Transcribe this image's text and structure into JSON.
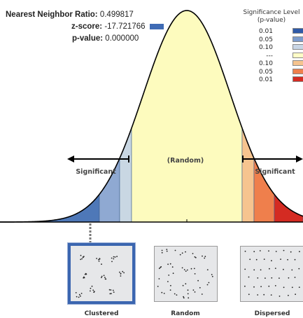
{
  "stats": {
    "nn_ratio_label": "Nearest Neighbor Ratio:",
    "nn_ratio_value": "0.499817",
    "zscore_label": "z-score:",
    "zscore_value": "-17.721766",
    "pvalue_label": "p-value:",
    "pvalue_value": "0.000000",
    "zscore_swatch_color": "#3f6bb5"
  },
  "legend": {
    "title_line1": "Significance Level",
    "title_line2": "(p-value)",
    "rows": [
      {
        "label": "0.01",
        "color": "#2f5aa8"
      },
      {
        "label": "0.05",
        "color": "#7c9ccd"
      },
      {
        "label": "0.10",
        "color": "#c9d6e6"
      },
      {
        "label": "---",
        "color": "#fffdc7"
      },
      {
        "label": "0.10",
        "color": "#f6c48f"
      },
      {
        "label": "0.05",
        "color": "#ef7f4c"
      },
      {
        "label": "0.01",
        "color": "#d42b22"
      }
    ]
  },
  "curve": {
    "center_label": "(Random)",
    "left_label": "Significant",
    "right_label": "Significant",
    "colors": {
      "blue_dark": "#4e78b8",
      "blue_mid": "#8fa9d2",
      "blue_light": "#c9d7e3",
      "yellow": "#fdfbbe",
      "orange_light": "#f6c48f",
      "orange": "#ef7f4c",
      "red": "#d42b22"
    }
  },
  "patterns": [
    {
      "caption": "Clustered",
      "selected": true
    },
    {
      "caption": "Random",
      "selected": false
    },
    {
      "caption": "Dispersed",
      "selected": false
    }
  ]
}
